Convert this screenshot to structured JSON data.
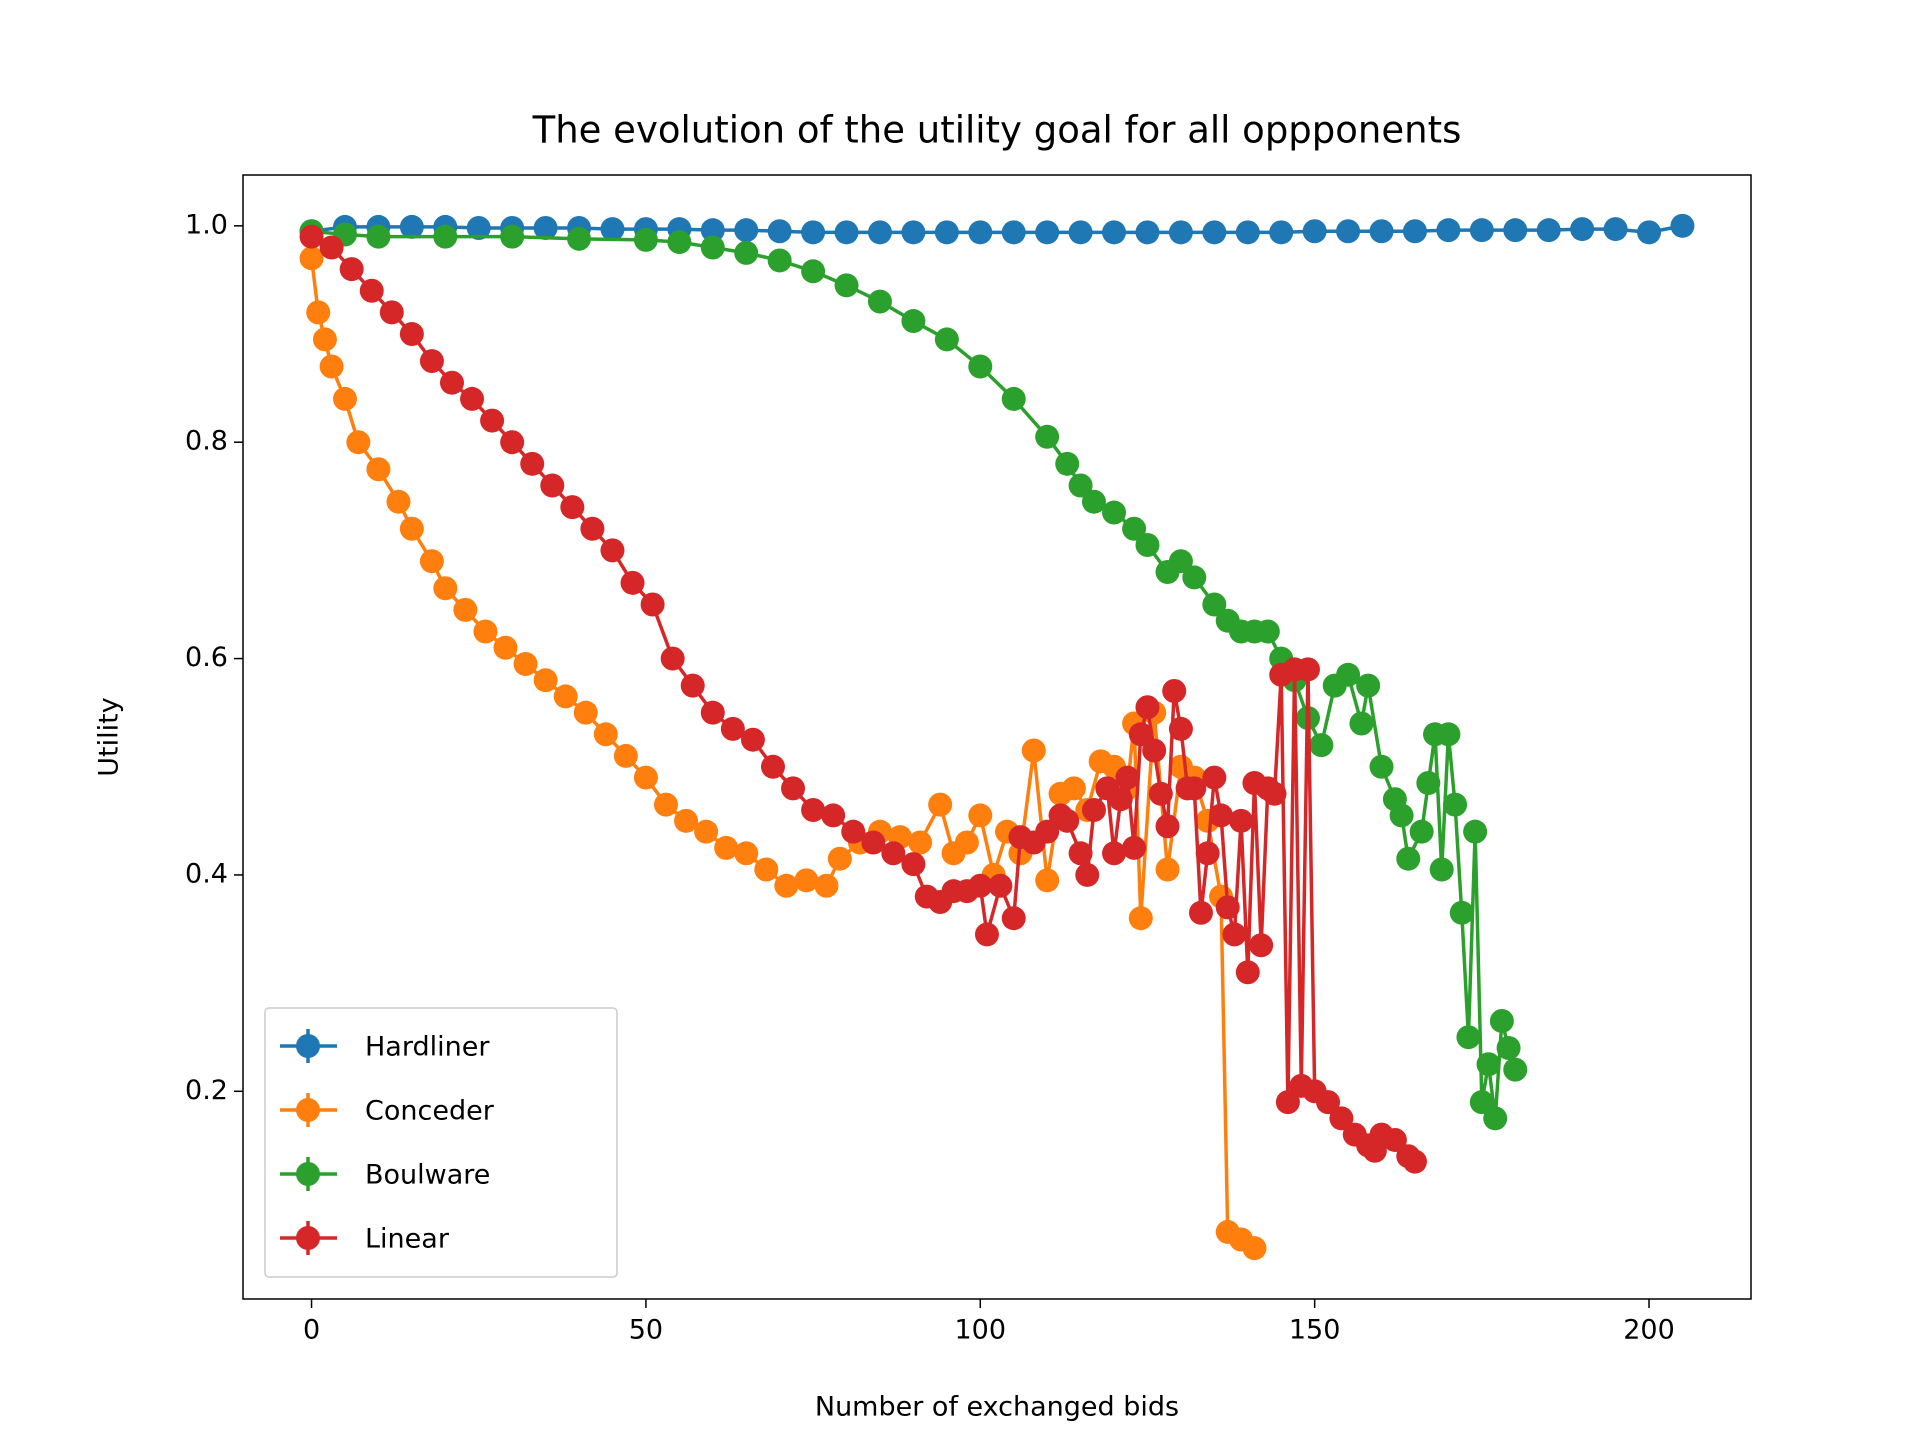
{
  "chart_data": {
    "type": "line",
    "title": "The evolution of the utility goal for all oppponents",
    "x_label": "Number of exchanged bids",
    "y_label": "Utility",
    "xlim": [
      -10.25,
      215.25
    ],
    "ylim": [
      0.008,
      1.047
    ],
    "xticks": [
      0,
      50,
      100,
      150,
      200
    ],
    "yticks": [
      0.2,
      0.4,
      0.6,
      0.8,
      {
        "value": 1,
        "label": "1.0"
      }
    ],
    "legend": "lower left",
    "series": [
      {
        "name": "Hardliner",
        "color": "#1f77b4",
        "x": [
          0,
          5,
          10,
          15,
          20,
          25,
          30,
          35,
          40,
          45,
          50,
          55,
          60,
          65,
          70,
          75,
          80,
          85,
          90,
          95,
          100,
          105,
          110,
          115,
          120,
          125,
          130,
          135,
          140,
          145,
          150,
          155,
          160,
          165,
          170,
          175,
          180,
          185,
          190,
          195,
          200,
          205
        ],
        "values": [
          0.995,
          0.999,
          0.999,
          0.999,
          0.999,
          0.998,
          0.998,
          0.998,
          0.998,
          0.997,
          0.997,
          0.997,
          0.996,
          0.996,
          0.995,
          0.994,
          0.994,
          0.994,
          0.994,
          0.994,
          0.994,
          0.994,
          0.994,
          0.994,
          0.994,
          0.994,
          0.994,
          0.994,
          0.994,
          0.994,
          0.995,
          0.995,
          0.995,
          0.995,
          0.996,
          0.996,
          0.996,
          0.996,
          0.997,
          0.997,
          0.994,
          1.0
        ]
      },
      {
        "name": "Conceder",
        "color": "#ff7f0e",
        "x": [
          0,
          1,
          2,
          3,
          5,
          7,
          10,
          13,
          15,
          18,
          20,
          23,
          26,
          29,
          32,
          35,
          38,
          41,
          44,
          47,
          50,
          53,
          56,
          59,
          62,
          65,
          68,
          71,
          74,
          77,
          79,
          82,
          85,
          88,
          91,
          94,
          96,
          98,
          100,
          102,
          104,
          106,
          108,
          110,
          112,
          114,
          116,
          118,
          120,
          122,
          123,
          124,
          126,
          128,
          130,
          132,
          134,
          136,
          137,
          139,
          141
        ],
        "values": [
          0.97,
          0.92,
          0.895,
          0.87,
          0.84,
          0.8,
          0.775,
          0.745,
          0.72,
          0.69,
          0.665,
          0.645,
          0.625,
          0.61,
          0.595,
          0.58,
          0.565,
          0.55,
          0.53,
          0.51,
          0.49,
          0.465,
          0.45,
          0.44,
          0.425,
          0.42,
          0.405,
          0.39,
          0.395,
          0.39,
          0.415,
          0.43,
          0.44,
          0.435,
          0.43,
          0.465,
          0.42,
          0.43,
          0.455,
          0.4,
          0.44,
          0.42,
          0.515,
          0.395,
          0.475,
          0.48,
          0.46,
          0.505,
          0.5,
          0.48,
          0.54,
          0.36,
          0.55,
          0.405,
          0.5,
          0.49,
          0.45,
          0.38,
          0.07,
          0.063,
          0.055
        ]
      },
      {
        "name": "Boulware",
        "color": "#2ca02c",
        "x": [
          0,
          5,
          10,
          20,
          30,
          40,
          50,
          55,
          60,
          65,
          70,
          75,
          80,
          85,
          90,
          95,
          100,
          105,
          110,
          113,
          115,
          117,
          120,
          123,
          125,
          128,
          130,
          132,
          135,
          137,
          139,
          141,
          143,
          145,
          147,
          149,
          151,
          153,
          155,
          157,
          158,
          160,
          162,
          163,
          164,
          166,
          167,
          168,
          169,
          170,
          171,
          172,
          173,
          174,
          175,
          176,
          177,
          178,
          179,
          180
        ],
        "values": [
          0.995,
          0.992,
          0.99,
          0.99,
          0.99,
          0.988,
          0.987,
          0.985,
          0.98,
          0.975,
          0.968,
          0.958,
          0.945,
          0.93,
          0.912,
          0.895,
          0.87,
          0.84,
          0.805,
          0.78,
          0.76,
          0.745,
          0.735,
          0.72,
          0.705,
          0.68,
          0.69,
          0.675,
          0.65,
          0.635,
          0.625,
          0.625,
          0.625,
          0.6,
          0.58,
          0.545,
          0.52,
          0.575,
          0.585,
          0.54,
          0.575,
          0.5,
          0.47,
          0.455,
          0.415,
          0.44,
          0.485,
          0.53,
          0.405,
          0.53,
          0.465,
          0.365,
          0.25,
          0.44,
          0.19,
          0.225,
          0.175,
          0.265,
          0.24,
          0.22
        ]
      },
      {
        "name": "Linear",
        "color": "#d62728",
        "x": [
          0,
          3,
          6,
          9,
          12,
          15,
          18,
          21,
          24,
          27,
          30,
          33,
          36,
          39,
          42,
          45,
          48,
          51,
          54,
          57,
          60,
          63,
          66,
          69,
          72,
          75,
          78,
          81,
          84,
          87,
          90,
          92,
          94,
          96,
          98,
          100,
          101,
          103,
          105,
          106,
          108,
          110,
          112,
          113,
          115,
          116,
          117,
          119,
          120,
          121,
          122,
          123,
          124,
          125,
          126,
          127,
          128,
          129,
          130,
          131,
          132,
          133,
          134,
          135,
          136,
          137,
          138,
          139,
          140,
          141,
          142,
          143,
          144,
          145,
          146,
          147,
          148,
          149,
          150,
          152,
          154,
          156,
          158,
          159,
          160,
          162,
          164,
          165
        ],
        "values": [
          0.99,
          0.98,
          0.96,
          0.94,
          0.92,
          0.9,
          0.875,
          0.855,
          0.84,
          0.82,
          0.8,
          0.78,
          0.76,
          0.74,
          0.72,
          0.7,
          0.67,
          0.65,
          0.6,
          0.575,
          0.55,
          0.535,
          0.525,
          0.5,
          0.48,
          0.46,
          0.455,
          0.44,
          0.43,
          0.42,
          0.41,
          0.38,
          0.375,
          0.385,
          0.385,
          0.39,
          0.345,
          0.39,
          0.36,
          0.435,
          0.43,
          0.44,
          0.455,
          0.45,
          0.42,
          0.4,
          0.46,
          0.48,
          0.42,
          0.47,
          0.49,
          0.425,
          0.53,
          0.555,
          0.515,
          0.475,
          0.445,
          0.57,
          0.535,
          0.48,
          0.48,
          0.365,
          0.42,
          0.49,
          0.455,
          0.37,
          0.345,
          0.45,
          0.31,
          0.485,
          0.335,
          0.48,
          0.475,
          0.585,
          0.19,
          0.59,
          0.205,
          0.59,
          0.2,
          0.19,
          0.175,
          0.16,
          0.15,
          0.145,
          0.16,
          0.155,
          0.14,
          0.135
        ]
      }
    ]
  }
}
